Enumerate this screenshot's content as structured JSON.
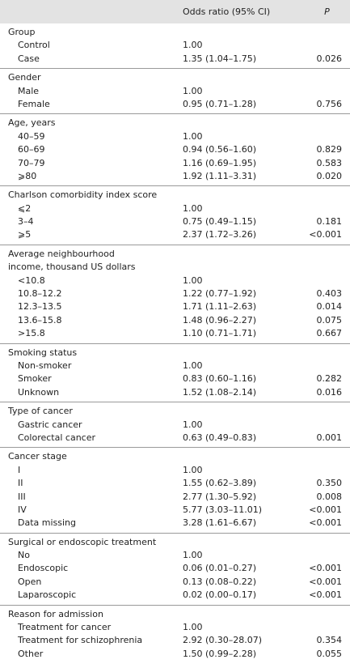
{
  "header": [
    "Odds ratio (95% CI)",
    "P"
  ],
  "sections": [
    {
      "title": [
        "Group"
      ],
      "rows": [
        [
          "Control",
          "1.00"
        ],
        [
          "Case",
          "1.35 (1.04–1.75)",
          "0.026"
        ]
      ]
    },
    {
      "title": [
        "Gender"
      ],
      "rows": [
        [
          "Male",
          "1.00"
        ],
        [
          "Female",
          "0.95 (0.71–1.28)",
          "0.756"
        ]
      ]
    },
    {
      "title": [
        "Age, years"
      ],
      "rows": [
        [
          "40–59",
          "1.00"
        ],
        [
          "60–69",
          "0.94 (0.56–1.60)",
          "0.829"
        ],
        [
          "70–79",
          "1.16 (0.69–1.95)",
          "0.583"
        ],
        [
          "⩾80",
          "1.92 (1.11–3.31)",
          "0.020"
        ]
      ]
    },
    {
      "title": [
        "Charlson comorbidity index score"
      ],
      "rows": [
        [
          "⩽2",
          "1.00"
        ],
        [
          "3–4",
          "0.75 (0.49–1.15)",
          "0.181"
        ],
        [
          "⩾5",
          "2.37 (1.72–3.26)",
          "<0.001"
        ]
      ]
    },
    {
      "title": [
        "Average neighbourhood",
        "income, thousand US dollars"
      ],
      "rows": [
        [
          "<10.8",
          "1.00"
        ],
        [
          "10.8–12.2",
          "1.22 (0.77–1.92)",
          "0.403"
        ],
        [
          "12.3–13.5",
          "1.71 (1.11–2.63)",
          "0.014"
        ],
        [
          "13.6–15.8",
          "1.48 (0.96–2.27)",
          "0.075"
        ],
        [
          ">15.8",
          "1.10 (0.71–1.71)",
          "0.667"
        ]
      ]
    },
    {
      "title": [
        "Smoking status"
      ],
      "rows": [
        [
          "Non-smoker",
          "1.00"
        ],
        [
          "Smoker",
          "0.83 (0.60–1.16)",
          "0.282"
        ],
        [
          "Unknown",
          "1.52 (1.08–2.14)",
          "0.016"
        ]
      ]
    },
    {
      "title": [
        "Type of cancer"
      ],
      "rows": [
        [
          "Gastric cancer",
          "1.00"
        ],
        [
          "Colorectal cancer",
          "0.63 (0.49–0.83)",
          "0.001"
        ]
      ]
    },
    {
      "title": [
        "Cancer stage"
      ],
      "rows": [
        [
          "I",
          "1.00"
        ],
        [
          "II",
          "1.55 (0.62–3.89)",
          "0.350"
        ],
        [
          "III",
          "2.77 (1.30–5.92)",
          "0.008"
        ],
        [
          "IV",
          "5.77 (3.03–11.01)",
          "<0.001"
        ],
        [
          "Data missing",
          "3.28 (1.61–6.67)",
          "<0.001"
        ]
      ]
    },
    {
      "title": [
        "Surgical or endoscopic treatment"
      ],
      "rows": [
        [
          "No",
          "1.00"
        ],
        [
          "Endoscopic",
          "0.06 (0.01–0.27)",
          "<0.001"
        ],
        [
          "Open",
          "0.13 (0.08–0.22)",
          "<0.001"
        ],
        [
          "Laparoscopic",
          "0.02 (0.00–0.17)",
          "<0.001"
        ]
      ]
    },
    {
      "title": [
        "Reason for admission"
      ],
      "rows": [
        [
          "Treatment for cancer",
          "1.00"
        ],
        [
          "Treatment for schizophrenia",
          "2.92 (0.30–28.07)",
          "0.354"
        ],
        [
          "Other",
          "1.50 (0.99–2.28)",
          "0.055"
        ]
      ]
    }
  ]
}
